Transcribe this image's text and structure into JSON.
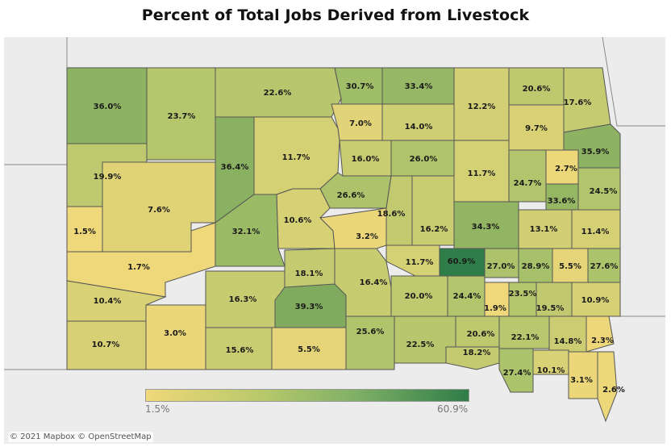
{
  "title": "Percent of Total Jobs Derived from Livestock",
  "attribution": "© 2021 Mapbox © OpenStreetMap",
  "legend": {
    "min_label": "1.5%",
    "max_label": "60.9%",
    "min": 1.5,
    "max": 60.9
  },
  "colors": {
    "low": "#efd87a",
    "mid": "#a9c26a",
    "high": "#2f7d48",
    "border": "#555555",
    "background": "#ececec"
  },
  "regions": [
    {
      "label": "36.0%",
      "value": 36.0
    },
    {
      "label": "23.7%",
      "value": 23.7
    },
    {
      "label": "22.6%",
      "value": 22.6
    },
    {
      "label": "30.7%",
      "value": 30.7
    },
    {
      "label": "33.4%",
      "value": 33.4
    },
    {
      "label": "12.2%",
      "value": 12.2
    },
    {
      "label": "20.6%",
      "value": 20.6
    },
    {
      "label": "17.6%",
      "value": 17.6
    },
    {
      "label": "7.0%",
      "value": 7.0
    },
    {
      "label": "14.0%",
      "value": 14.0
    },
    {
      "label": "9.7%",
      "value": 9.7
    },
    {
      "label": "36.4%",
      "value": 36.4
    },
    {
      "label": "11.7%",
      "value": 11.7
    },
    {
      "label": "19.9%",
      "value": 19.9
    },
    {
      "label": "16.0%",
      "value": 16.0
    },
    {
      "label": "26.0%",
      "value": 26.0
    },
    {
      "label": "11.7%",
      "value": 11.7
    },
    {
      "label": "35.9%",
      "value": 35.9
    },
    {
      "label": "2.7%",
      "value": 2.7
    },
    {
      "label": "24.7%",
      "value": 24.7
    },
    {
      "label": "24.5%",
      "value": 24.5
    },
    {
      "label": "7.6%",
      "value": 7.6
    },
    {
      "label": "26.6%",
      "value": 26.6
    },
    {
      "label": "33.6%",
      "value": 33.6
    },
    {
      "label": "10.6%",
      "value": 10.6
    },
    {
      "label": "18.6%",
      "value": 18.6
    },
    {
      "label": "1.5%",
      "value": 1.5
    },
    {
      "label": "32.1%",
      "value": 32.1
    },
    {
      "label": "3.2%",
      "value": 3.2
    },
    {
      "label": "16.2%",
      "value": 16.2
    },
    {
      "label": "34.3%",
      "value": 34.3
    },
    {
      "label": "13.1%",
      "value": 13.1
    },
    {
      "label": "11.4%",
      "value": 11.4
    },
    {
      "label": "1.7%",
      "value": 1.7
    },
    {
      "label": "11.7%",
      "value": 11.7
    },
    {
      "label": "60.9%",
      "value": 60.9
    },
    {
      "label": "27.0%",
      "value": 27.0
    },
    {
      "label": "28.9%",
      "value": 28.9
    },
    {
      "label": "5.5%",
      "value": 5.5
    },
    {
      "label": "27.6%",
      "value": 27.6
    },
    {
      "label": "18.1%",
      "value": 18.1
    },
    {
      "label": "16.4%",
      "value": 16.4
    },
    {
      "label": "10.4%",
      "value": 10.4
    },
    {
      "label": "16.3%",
      "value": 16.3
    },
    {
      "label": "39.3%",
      "value": 39.3
    },
    {
      "label": "20.0%",
      "value": 20.0
    },
    {
      "label": "24.4%",
      "value": 24.4
    },
    {
      "label": "1.9%",
      "value": 1.9
    },
    {
      "label": "23.5%",
      "value": 23.5
    },
    {
      "label": "19.5%",
      "value": 19.5
    },
    {
      "label": "10.9%",
      "value": 10.9
    },
    {
      "label": "3.0%",
      "value": 3.0
    },
    {
      "label": "10.7%",
      "value": 10.7
    },
    {
      "label": "25.6%",
      "value": 25.6
    },
    {
      "label": "20.6%",
      "value": 20.6
    },
    {
      "label": "22.1%",
      "value": 22.1
    },
    {
      "label": "14.8%",
      "value": 14.8
    },
    {
      "label": "2.3%",
      "value": 2.3
    },
    {
      "label": "15.6%",
      "value": 15.6
    },
    {
      "label": "5.5%",
      "value": 5.5
    },
    {
      "label": "22.5%",
      "value": 22.5
    },
    {
      "label": "18.2%",
      "value": 18.2
    },
    {
      "label": "27.4%",
      "value": 27.4
    },
    {
      "label": "10.1%",
      "value": 10.1
    },
    {
      "label": "3.1%",
      "value": 3.1
    },
    {
      "label": "2.6%",
      "value": 2.6
    }
  ]
}
